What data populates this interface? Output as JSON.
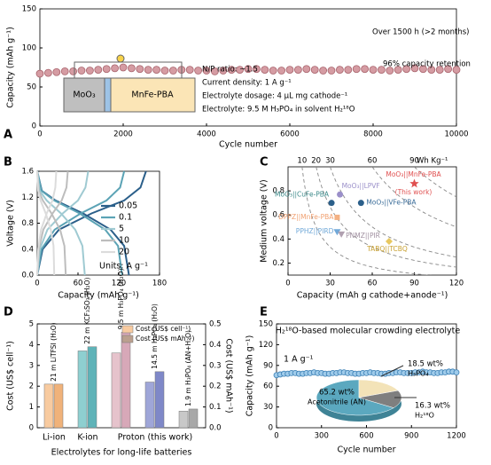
{
  "chart_data": [
    {
      "type": "scatter",
      "label": "A",
      "xlabel": "Cycle number",
      "ylabel": "Capacity (mAh g⁻¹)",
      "color": "#d59ca3",
      "xlim": [
        0,
        10000
      ],
      "xticks": [
        0,
        2000,
        4000,
        6000,
        8000,
        10000
      ],
      "ylim": [
        0,
        150
      ],
      "yticks": [
        0,
        50,
        100,
        150
      ],
      "x": [
        0,
        200,
        400,
        600,
        800,
        1000,
        1200,
        1400,
        1600,
        1800,
        2000,
        2200,
        2400,
        2600,
        2800,
        3000,
        3200,
        3400,
        3600,
        3800,
        4000,
        4200,
        4400,
        4600,
        4800,
        5000,
        5200,
        5400,
        5600,
        5800,
        6000,
        6200,
        6400,
        6600,
        6800,
        7000,
        7200,
        7400,
        7600,
        7800,
        8000,
        8200,
        8400,
        8600,
        8800,
        9000,
        9200,
        9400,
        9600,
        9800,
        10000
      ],
      "values": [
        67,
        68,
        69,
        70,
        70,
        71,
        71,
        72,
        73,
        74,
        75,
        74,
        73,
        72,
        72,
        71,
        71,
        72,
        72,
        71,
        71,
        70,
        71,
        72,
        72,
        73,
        73,
        72,
        71,
        71,
        72,
        72,
        73,
        72,
        71,
        71,
        72,
        72,
        73,
        73,
        72,
        72,
        71,
        72,
        73,
        74,
        73,
        72,
        72,
        73,
        72
      ],
      "annotations": [
        "Over 1500 h (>2 months)",
        "96% capacity retention",
        "N/P ratio: ~1.5",
        "Current density: 1 A g⁻¹",
        "Electrolyte dosage: 4 μL mg cathode⁻¹",
        "Electrolyte: 9.5 M H₃PO₄ in solvent H₂¹⁸O"
      ],
      "cell": [
        "MoO₃",
        "MnFe-PBA"
      ]
    },
    {
      "type": "line",
      "label": "B",
      "xlabel": "Capacity (mAh g⁻¹)",
      "ylabel": "Voltage (V)",
      "legend_title": "Units: A g⁻¹",
      "xlim": [
        0,
        180
      ],
      "xticks": [
        0,
        60,
        120,
        180
      ],
      "ylim": [
        0,
        1.6
      ],
      "yticks": [
        {
          "value": 0,
          "label": "0.0"
        },
        0.4,
        0.8,
        1.2,
        1.6
      ],
      "series": [
        {
          "name": "0.05",
          "color": "#2b5f8a",
          "x": [
            0,
            6.8,
            27,
            67.5,
            108,
            128,
            135,
            null,
            0,
            8,
            32,
            80,
            128,
            152,
            160
          ],
          "values": [
            1.6,
            1.3,
            1.15,
            0.95,
            0.7,
            0.45,
            0,
            null,
            0,
            0.4,
            0.7,
            0.95,
            1.15,
            1.35,
            1.6
          ]
        },
        {
          "name": "0.1",
          "color": "#5ba3b5",
          "x": [
            0,
            6.3,
            25,
            62.5,
            100,
            119,
            125,
            null,
            0,
            6.4,
            25.6,
            64,
            102,
            122,
            128
          ],
          "values": [
            1.6,
            1.3,
            1.15,
            0.95,
            0.7,
            0.45,
            0,
            null,
            0,
            0.4,
            0.7,
            0.95,
            1.15,
            1.35,
            1.6
          ]
        },
        {
          "name": "5",
          "color": "#9fcad2",
          "x": [
            0,
            3.5,
            14,
            35,
            56,
            66.5,
            70,
            null,
            0,
            3.8,
            15,
            37.5,
            60,
            71,
            75
          ],
          "values": [
            1.6,
            1.3,
            1.15,
            0.95,
            0.7,
            0.45,
            0,
            null,
            0,
            0.4,
            0.7,
            0.95,
            1.15,
            1.35,
            1.6
          ]
        },
        {
          "name": "10",
          "color": "#bdbdbd",
          "x": [
            0,
            2.1,
            8.4,
            21,
            33.6,
            40,
            42,
            null,
            0,
            2.3,
            9,
            22.5,
            36,
            43,
            45
          ],
          "values": [
            1.6,
            1.3,
            1.15,
            0.95,
            0.7,
            0.45,
            0,
            null,
            0,
            0.4,
            0.7,
            0.95,
            1.15,
            1.35,
            1.6
          ]
        },
        {
          "name": "20",
          "color": "#dcdcdc",
          "x": [
            0,
            1.3,
            5,
            12.5,
            20,
            24,
            25,
            null,
            0,
            1.4,
            5.6,
            14,
            22.4,
            26.6,
            28
          ],
          "values": [
            1.6,
            1.3,
            1.15,
            0.95,
            0.7,
            0.45,
            0,
            null,
            0,
            0.4,
            0.7,
            0.95,
            1.15,
            1.35,
            1.6
          ]
        }
      ]
    },
    {
      "type": "scatter",
      "label": "C",
      "xlabel": "Capacity (mAh g cathode+anode⁻¹)",
      "ylabel": "Medium voltage (V)",
      "xlim": [
        0,
        120
      ],
      "xticks": [
        0,
        30,
        60,
        90,
        120
      ],
      "ylim": [
        0.1,
        1.0
      ],
      "yticks": [
        0.2,
        0.4,
        0.6,
        0.8
      ],
      "contours": [
        10,
        20,
        30,
        60,
        90
      ],
      "contour_unit": "Wh Kg⁻¹",
      "points": [
        {
          "label": "MoO₃||CuFe-PBA",
          "x": 31,
          "y": 0.7,
          "color": "#2b5f8a",
          "text_color": "#3c8a8a",
          "marker": "circle"
        },
        {
          "label": "MoO₃||LPVF",
          "x": 37,
          "y": 0.77,
          "color": "#9a8fc9",
          "text_color": "#9a8fc9",
          "marker": "circle"
        },
        {
          "label": "MoO₃||VFe-PBA",
          "x": 52,
          "y": 0.7,
          "color": "#2b5f8a",
          "text_color": "#3c6e9a",
          "marker": "circle"
        },
        {
          "label": "MoO₃||MnFe-PBA",
          "note": "(This work)",
          "x": 90,
          "y": 0.86,
          "color": "#e05050",
          "text_color": "#e05050",
          "marker": "star"
        },
        {
          "label": "DPPZ||MnFe-PBA",
          "x": 35,
          "y": 0.58,
          "color": "#f4b183",
          "text_color": "#f0a070",
          "marker": "square"
        },
        {
          "label": "PPHZ||PIRD",
          "x": 35,
          "y": 0.46,
          "color": "#70a8d8",
          "text_color": "#70a8d8",
          "marker": "triangle"
        },
        {
          "label": "PNMZ||PIR",
          "x": 38,
          "y": 0.44,
          "color": "#b0a0b0",
          "text_color": "#a090a0",
          "marker": "triangle"
        },
        {
          "label": "TABQ||TCBQ",
          "x": 72,
          "y": 0.38,
          "color": "#e8c860",
          "text_color": "#c8a030",
          "marker": "diamond"
        }
      ]
    },
    {
      "type": "bar",
      "label": "D",
      "xlabel": "Electrolytes for long-life batteries",
      "ylabel": "Cost (US$ cell⁻¹)",
      "y2label": "Cost (US$ mAh⁻¹)",
      "categories": [
        "21 m LiTFSI (H₂O)",
        "22 m KCF₃SO₃ (H₂O)",
        "9.5 m H₃PO₄ (H₂O)",
        "14.5 m H₃PO₄ (H₂O)",
        "1.9 m H₃PO₄ (AN+H₂O)"
      ],
      "groups": [
        "Li-ion",
        "K-ion",
        "Proton (this work)"
      ],
      "ylim": [
        0,
        5
      ],
      "yticks": [
        0,
        1,
        2,
        3,
        4,
        5
      ],
      "y2lim": [
        0,
        0.5
      ],
      "y2ticks": [
        {
          "value": 0,
          "label": "0.0"
        },
        0.1,
        0.2,
        0.3,
        0.4,
        0.5
      ],
      "series": [
        {
          "name": "Cost (US$  cell⁻¹)",
          "color": "#f8cba0",
          "colors": [
            "#f8cba0",
            "#8ecfd0",
            "#e6c3cc",
            "#9fa6d8",
            "#c8c8c8"
          ],
          "values": [
            2.1,
            3.7,
            3.6,
            2.2,
            0.8
          ]
        },
        {
          "name": "Cost (US$ mAh⁻¹)",
          "color": "#bba08f",
          "axis": "y2",
          "colors": [
            "#f0b27a",
            "#5fb3b8",
            "#d7a8b8",
            "#7f88c8",
            "#a8a8a8"
          ],
          "values": [
            0.21,
            0.39,
            0.46,
            0.27,
            0.09
          ]
        }
      ]
    },
    {
      "type": "scatter",
      "label": "E",
      "title": "H₂¹⁸O-based molecular crowding electrolyte",
      "annotation": "1 A g⁻¹",
      "xlabel": "Cycle number",
      "ylabel": "Capacity (mAh g⁻¹)",
      "color": "#3a7fb5",
      "xlim": [
        0,
        1200
      ],
      "xticks": [
        0,
        300,
        600,
        900,
        1200
      ],
      "ylim": [
        0,
        150
      ],
      "yticks": [
        0,
        30,
        60,
        90,
        120,
        150
      ],
      "x": [
        0,
        25,
        50,
        75,
        100,
        125,
        150,
        175,
        200,
        225,
        250,
        275,
        300,
        325,
        350,
        375,
        400,
        425,
        450,
        475,
        500,
        525,
        550,
        575,
        600,
        625,
        650,
        675,
        700,
        725,
        750,
        775,
        800,
        825,
        850,
        875,
        900,
        925,
        950,
        975,
        1000,
        1025,
        1050,
        1075,
        1100,
        1125,
        1150,
        1175,
        1200
      ],
      "values": [
        76,
        77,
        78,
        78,
        79,
        79,
        78,
        78,
        79,
        79,
        80,
        79,
        79,
        78,
        78,
        79,
        79,
        80,
        80,
        79,
        79,
        78,
        78,
        79,
        79,
        80,
        79,
        79,
        78,
        78,
        79,
        79,
        80,
        80,
        79,
        79,
        79,
        80,
        80,
        81,
        80,
        80,
        79,
        79,
        80,
        80,
        81,
        81,
        80
      ],
      "pie": {
        "categories": [
          "Acetonitrile (AN)",
          "H₃PO₄",
          "H₂¹⁸O"
        ],
        "values": [
          65.2,
          18.5,
          16.3
        ],
        "value_labels": [
          "65.2 wt%",
          "18.5 wt%",
          "16.3 wt%"
        ],
        "colors": [
          "#5ba8bf",
          "#f3e3b8",
          "#7f7f7f"
        ]
      }
    }
  ]
}
